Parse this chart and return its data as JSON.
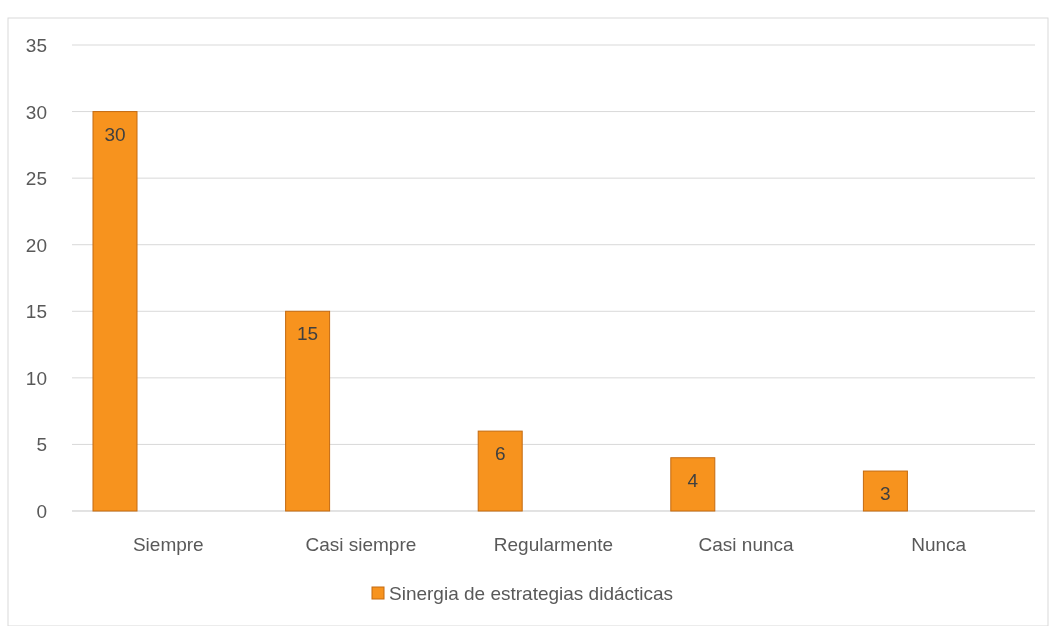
{
  "chart_data": {
    "type": "bar",
    "categories": [
      "Siempre",
      "Casi siempre",
      "Regularmente",
      "Casi nunca",
      "Nunca"
    ],
    "series": [
      {
        "name": "Sinergia de estrategias didácticas",
        "color": "#f7931e",
        "values": [
          30,
          15,
          6,
          4,
          3
        ]
      }
    ],
    "ylim": [
      0,
      35
    ],
    "yticks": [
      0,
      5,
      10,
      15,
      20,
      25,
      30,
      35
    ],
    "grid": "y",
    "legend": "bottom",
    "data_labels": true
  }
}
